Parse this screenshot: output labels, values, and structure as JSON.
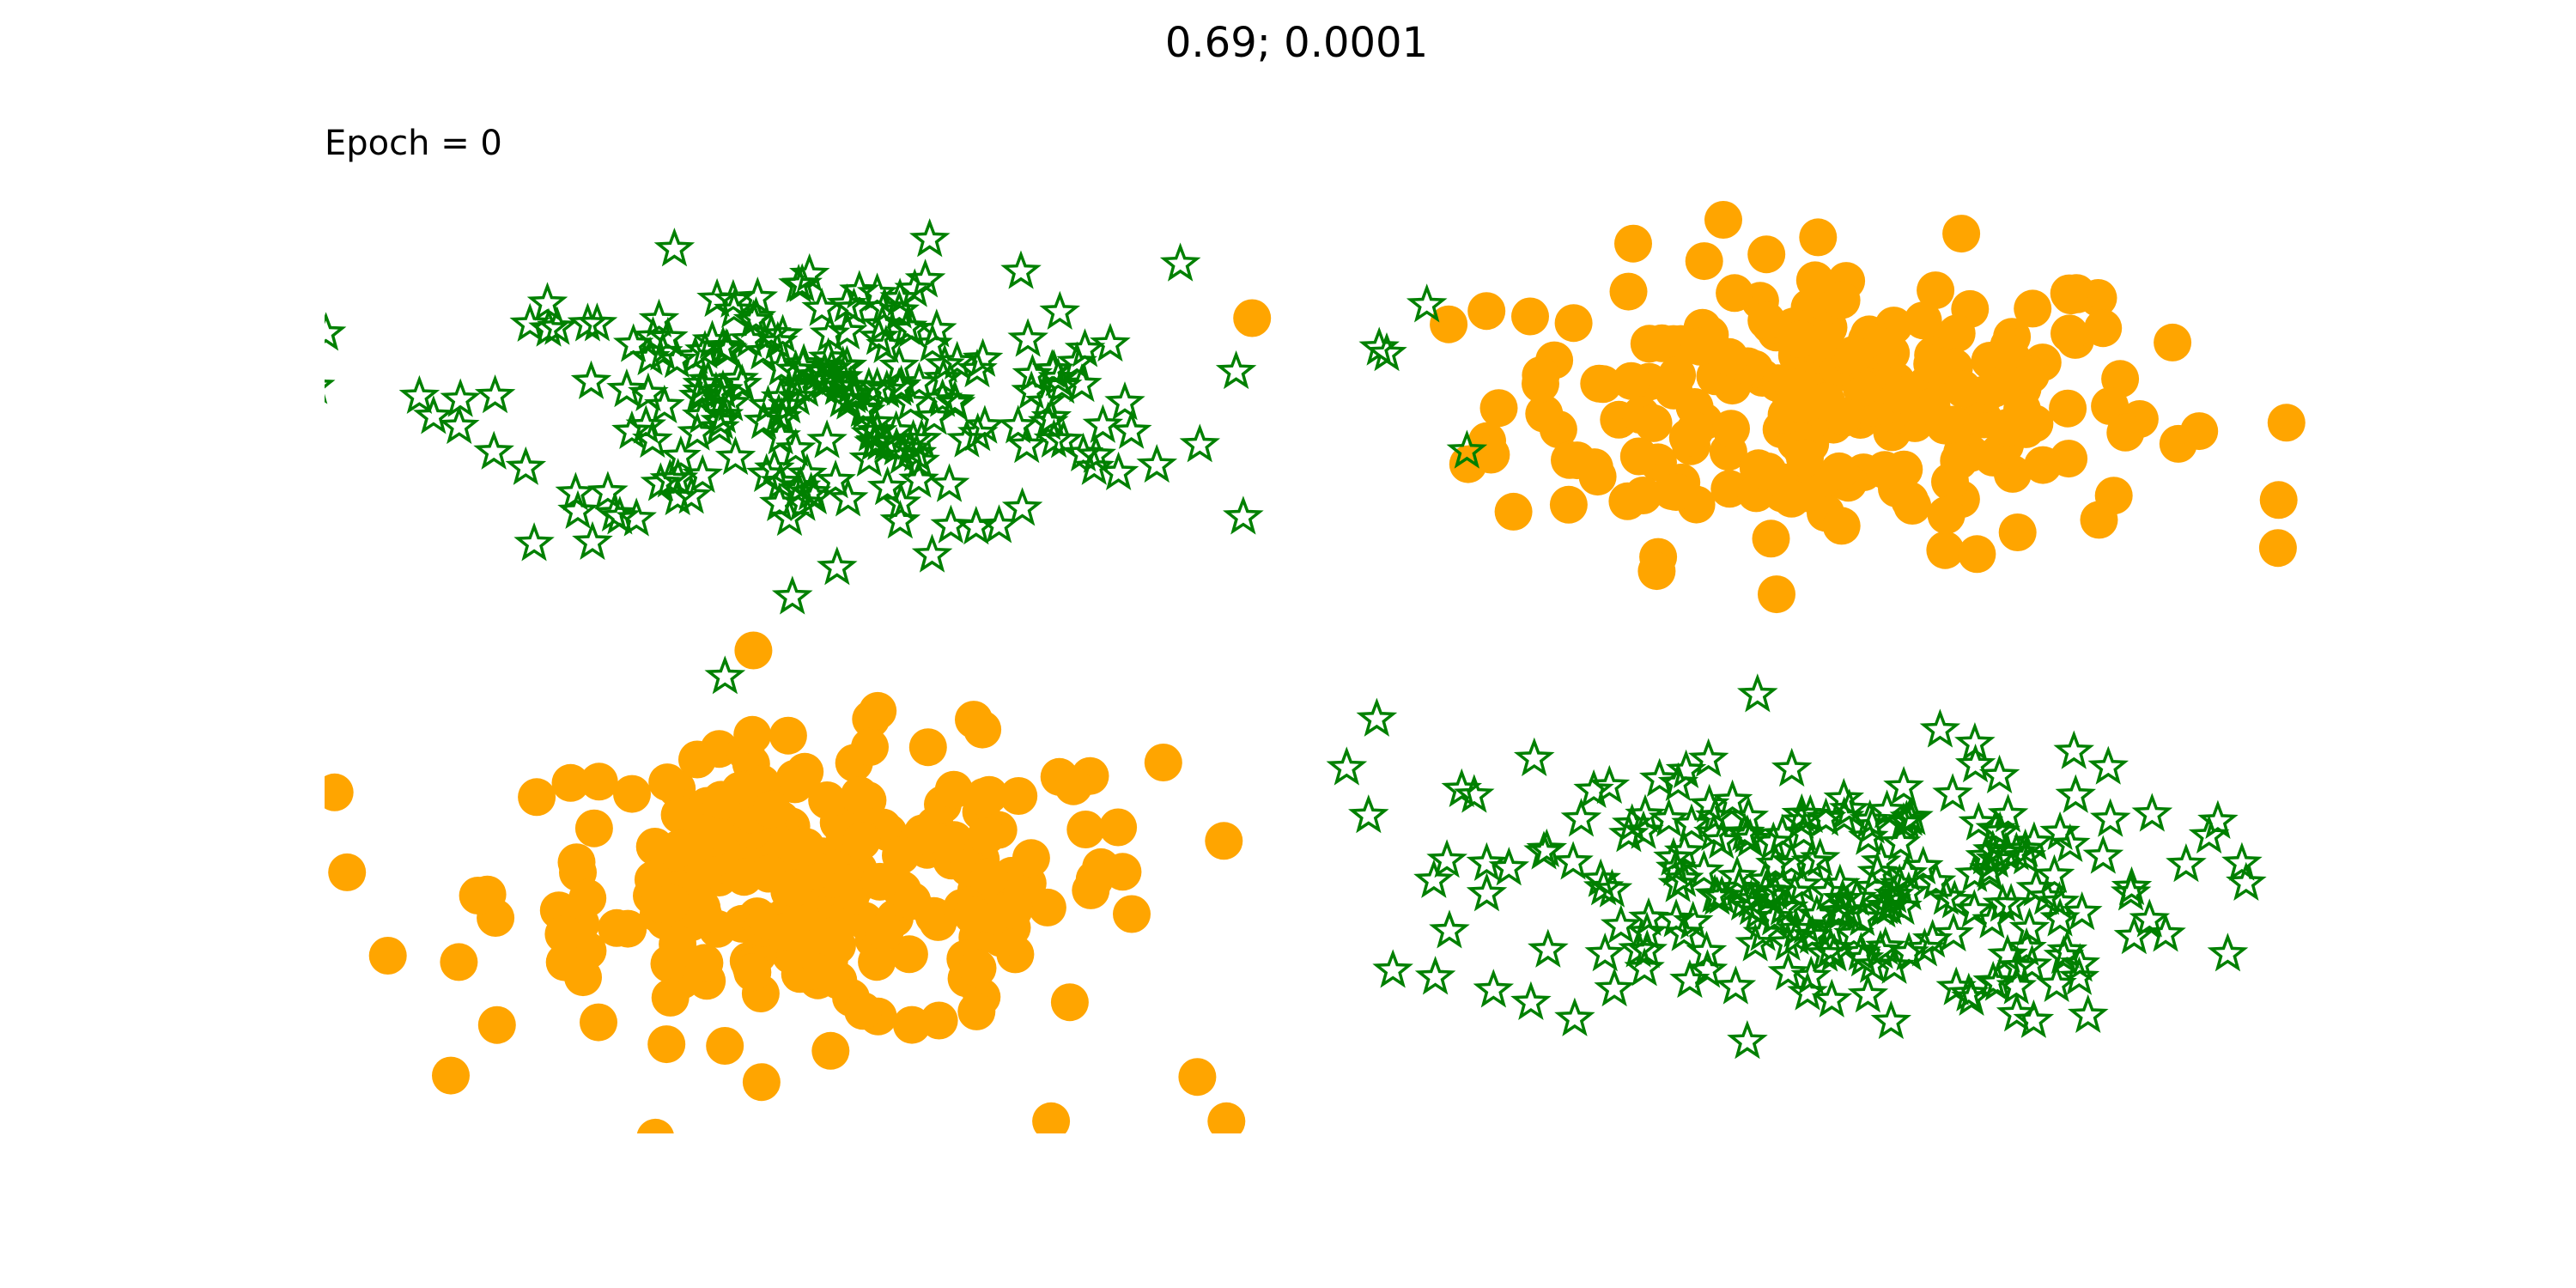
{
  "chart_data": {
    "type": "scatter",
    "title": "0.69; 0.0001",
    "annotation": "Epoch = 0",
    "xlim": [
      -2,
      2
    ],
    "ylim": [
      -2,
      2
    ],
    "axes_visible": false,
    "grid": false,
    "series": [
      {
        "name": "class-star",
        "marker": "star",
        "color": "#008000",
        "filled": false,
        "clusters": [
          {
            "center": [
              -1.0,
              1.0
            ],
            "spread": [
              0.35,
              0.28
            ],
            "count": 230
          },
          {
            "center": [
              1.0,
              -1.0
            ],
            "spread": [
              0.35,
              0.28
            ],
            "count": 230
          }
        ],
        "outliers": [
          [
            0.2,
            1.4
          ],
          [
            0.12,
            1.2
          ],
          [
            0.28,
            0.8
          ],
          [
            0.1,
            -0.3
          ],
          [
            0.04,
            -0.5
          ],
          [
            0.86,
            -0.2
          ]
        ]
      },
      {
        "name": "class-circle",
        "marker": "circle",
        "color": "#FFA500",
        "filled": true,
        "clusters": [
          {
            "center": [
              1.0,
              1.0
            ],
            "spread": [
              0.33,
              0.3
            ],
            "count": 230
          },
          {
            "center": [
              -1.0,
              -1.0
            ],
            "spread": [
              0.33,
              0.3
            ],
            "count": 230
          }
        ],
        "outliers": [
          [
            1.9,
            0.6
          ],
          [
            -1.98,
            -0.6
          ],
          [
            -0.2,
            -1.95
          ],
          [
            -0.55,
            -1.95
          ]
        ]
      }
    ]
  }
}
